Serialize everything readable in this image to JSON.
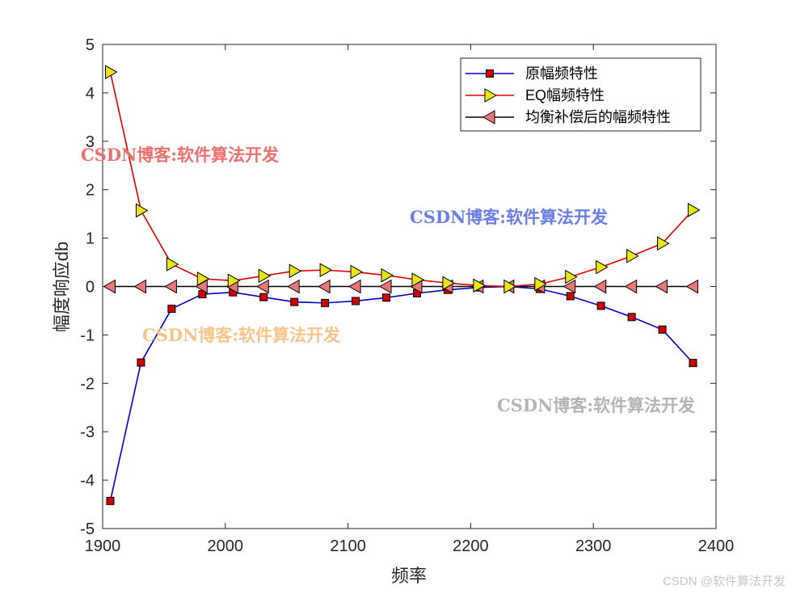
{
  "chart_data": {
    "type": "line",
    "xlabel": "频率",
    "ylabel": "幅度响应db",
    "xlim": [
      1900,
      2400
    ],
    "ylim": [
      -5,
      5
    ],
    "xticks": [
      1900,
      2000,
      2100,
      2200,
      2300,
      2400
    ],
    "yticks": [
      -5,
      -4,
      -3,
      -2,
      -1,
      0,
      1,
      2,
      3,
      4,
      5
    ],
    "x": [
      1906.25,
      1931.25,
      1956.25,
      1981.25,
      2006.25,
      2031.25,
      2056.25,
      2081.25,
      2106.25,
      2131.25,
      2156.25,
      2181.25,
      2206.25,
      2231.25,
      2256.25,
      2281.25,
      2306.25,
      2331.25,
      2356.25,
      2381.25
    ],
    "series": [
      {
        "name": "原幅频特性",
        "color": "#0000cc",
        "marker": "square",
        "marker_fill": "#cc0000",
        "values": [
          -4.43,
          -1.57,
          -0.46,
          -0.16,
          -0.12,
          -0.22,
          -0.32,
          -0.34,
          -0.3,
          -0.23,
          -0.14,
          -0.07,
          -0.02,
          0.0,
          -0.05,
          -0.2,
          -0.4,
          -0.63,
          -0.89,
          -1.58
        ]
      },
      {
        "name": "EQ幅频特性",
        "color": "#dd0000",
        "marker": "triangle-right",
        "marker_fill": "#e6e619",
        "values": [
          4.43,
          1.57,
          0.46,
          0.16,
          0.12,
          0.22,
          0.32,
          0.34,
          0.3,
          0.23,
          0.14,
          0.07,
          0.02,
          0.0,
          0.05,
          0.2,
          0.4,
          0.63,
          0.89,
          1.58
        ]
      },
      {
        "name": "均衡补偿后的幅频特性",
        "color": "#000000",
        "marker": "triangle-left",
        "marker_fill": "#e87878",
        "values": [
          0,
          0,
          0,
          0,
          0,
          0,
          0,
          0,
          0,
          0,
          0,
          0,
          0,
          0,
          0,
          0,
          0,
          0,
          0,
          0
        ]
      }
    ],
    "legend": "top-right",
    "grid": false
  },
  "watermarks": [
    {
      "text": "CSDN博客:软件算法开发",
      "color": "#ee6f6f"
    },
    {
      "text": "CSDN博客:软件算法开发",
      "color": "#6b7ee8"
    },
    {
      "text": "CSDN博客:软件算法开发",
      "color": "#f5c58a"
    },
    {
      "text": "CSDN博客:软件算法开发",
      "color": "#b4b4b4"
    }
  ],
  "credit": "CSDN @软件算法开发"
}
